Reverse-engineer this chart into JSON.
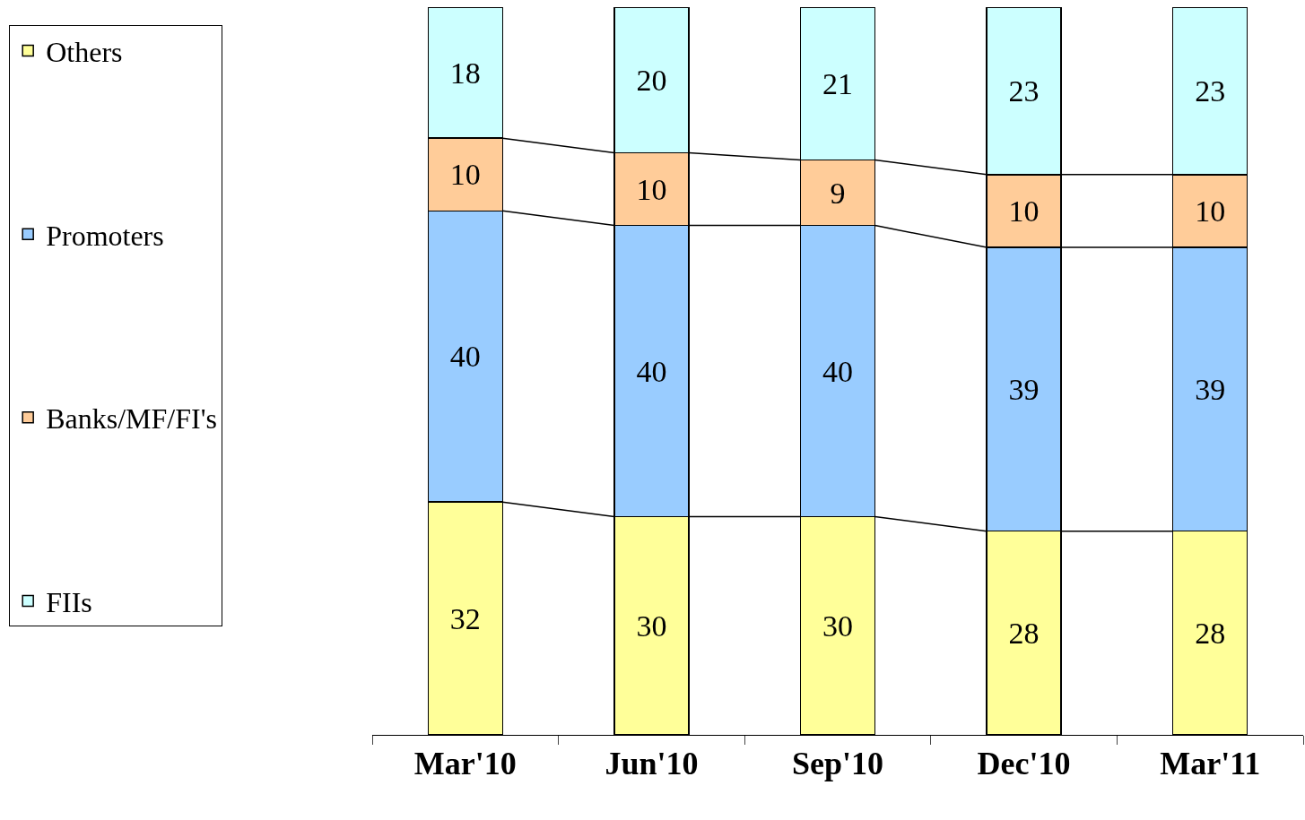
{
  "chart_data": {
    "type": "bar",
    "stacked": true,
    "data_labels": true,
    "legend": "left",
    "categories": [
      "Mar'10",
      "Jun'10",
      "Sep'10",
      "Dec'10",
      "Mar'11"
    ],
    "series": [
      {
        "name": "Others",
        "color": "#ffff99",
        "values": [
          32,
          30,
          30,
          28,
          28
        ]
      },
      {
        "name": "Promoters",
        "color": "#99ccff",
        "values": [
          40,
          40,
          40,
          39,
          39
        ]
      },
      {
        "name": "Banks/MF/FI's",
        "color": "#ffcc99",
        "values": [
          10,
          10,
          9,
          10,
          10
        ]
      },
      {
        "name": "FIIs",
        "color": "#ccffff",
        "values": [
          18,
          20,
          21,
          23,
          23
        ]
      }
    ]
  }
}
